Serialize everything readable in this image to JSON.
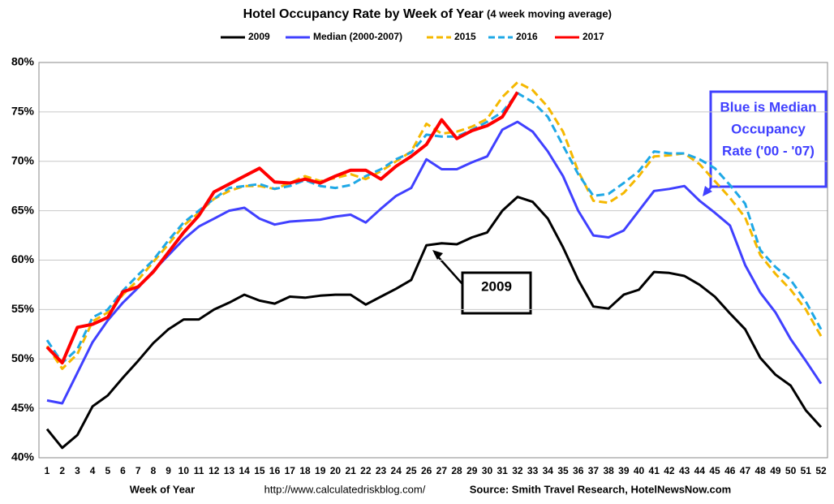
{
  "chart_data": {
    "type": "line",
    "title": "Hotel Occupancy Rate by  Week of Year",
    "subtitle": "(4 week moving average)",
    "x_label": "Week of Year",
    "url": "http://www.calculatedriskblog.com/",
    "source": "Source: Smith Travel Research, HotelNewsNow.com",
    "categories": [
      1,
      2,
      3,
      4,
      5,
      6,
      7,
      8,
      9,
      10,
      11,
      12,
      13,
      14,
      15,
      16,
      17,
      18,
      19,
      20,
      21,
      22,
      23,
      24,
      25,
      26,
      27,
      28,
      29,
      30,
      31,
      32,
      33,
      34,
      35,
      36,
      37,
      38,
      39,
      40,
      41,
      42,
      43,
      44,
      45,
      46,
      47,
      48,
      49,
      50,
      51,
      52
    ],
    "ylim": [
      40,
      80
    ],
    "yticks": [
      {
        "value": 40,
        "label": "40%"
      },
      {
        "value": 45,
        "label": "45%"
      },
      {
        "value": 50,
        "label": "50%"
      },
      {
        "value": 55,
        "label": "55%"
      },
      {
        "value": 60,
        "label": "60%"
      },
      {
        "value": 65,
        "label": "65%"
      },
      {
        "value": 70,
        "label": "70%"
      },
      {
        "value": 75,
        "label": "75%"
      },
      {
        "value": 80,
        "label": "80%"
      }
    ],
    "grid": true,
    "legend": "top",
    "series": [
      {
        "name": "2009",
        "color": "#000000",
        "style": "solid",
        "values": [
          42.9,
          41.0,
          42.3,
          45.2,
          46.3,
          48.1,
          49.8,
          51.6,
          53.0,
          54.0,
          54.0,
          55.0,
          55.7,
          56.5,
          55.9,
          55.6,
          56.3,
          56.2,
          56.4,
          56.5,
          56.5,
          55.5,
          56.3,
          57.1,
          58.0,
          61.5,
          61.7,
          61.6,
          62.3,
          62.8,
          65.0,
          66.4,
          65.9,
          64.2,
          61.3,
          58.0,
          55.3,
          55.1,
          56.5,
          57.0,
          58.8,
          58.7,
          58.4,
          57.5,
          56.3,
          54.6,
          53.0,
          50.1,
          48.4,
          47.3,
          44.8,
          43.1
        ]
      },
      {
        "name": "Median (2000-2007)",
        "color": "#4040ff",
        "style": "solid",
        "values": [
          45.8,
          45.5,
          48.6,
          51.7,
          53.9,
          55.7,
          57.2,
          58.9,
          60.5,
          62.1,
          63.4,
          64.2,
          65.0,
          65.3,
          64.2,
          63.6,
          63.9,
          64.0,
          64.1,
          64.4,
          64.6,
          63.8,
          65.2,
          66.5,
          67.3,
          70.2,
          69.2,
          69.2,
          69.9,
          70.5,
          73.2,
          74.0,
          73.0,
          71.0,
          68.5,
          65.0,
          62.5,
          62.3,
          63.0,
          65.0,
          67.0,
          67.2,
          67.5,
          66.0,
          64.8,
          63.5,
          59.5,
          56.7,
          54.7,
          52.0,
          49.8,
          47.5
        ]
      },
      {
        "name": "2015",
        "color": "#f5b800",
        "style": "dashed",
        "values": [
          51.3,
          49.0,
          50.5,
          53.8,
          54.7,
          56.5,
          58.0,
          59.8,
          61.6,
          63.5,
          64.8,
          66.2,
          67.0,
          67.5,
          67.5,
          67.2,
          67.8,
          68.5,
          68.0,
          68.3,
          68.7,
          68.2,
          69.0,
          70.0,
          71.0,
          73.8,
          72.8,
          73.0,
          73.5,
          74.3,
          76.5,
          78.0,
          77.2,
          75.5,
          73.0,
          69.0,
          66.0,
          65.8,
          66.8,
          68.5,
          70.5,
          70.6,
          70.8,
          69.7,
          68.0,
          66.3,
          64.3,
          60.5,
          58.6,
          57.0,
          55.0,
          52.3
        ]
      },
      {
        "name": "2016",
        "color": "#1fa8e6",
        "style": "dashed",
        "values": [
          51.9,
          49.6,
          51.0,
          54.2,
          55.0,
          56.9,
          58.5,
          60.0,
          62.0,
          63.8,
          65.0,
          66.2,
          67.3,
          67.5,
          67.7,
          67.2,
          67.5,
          68.1,
          67.5,
          67.3,
          67.6,
          68.5,
          69.2,
          70.2,
          70.9,
          72.7,
          72.5,
          72.5,
          73.2,
          74.0,
          75.0,
          76.9,
          76.0,
          74.5,
          71.6,
          68.7,
          66.5,
          66.7,
          67.8,
          69.0,
          71.0,
          70.8,
          70.8,
          70.2,
          69.3,
          67.6,
          65.7,
          61.0,
          59.3,
          58.0,
          55.8,
          53.0
        ]
      },
      {
        "name": "2017",
        "color": "#ff0000",
        "style": "solid",
        "values": [
          51.2,
          49.6,
          53.2,
          53.5,
          54.2,
          56.8,
          57.3,
          58.8,
          60.8,
          62.8,
          64.5,
          66.9,
          67.7,
          68.5,
          69.3,
          67.9,
          67.8,
          68.2,
          67.8,
          68.5,
          69.1,
          69.1,
          68.2,
          69.5,
          70.5,
          71.7,
          74.2,
          72.3,
          73.1,
          73.6,
          74.5,
          77.0,
          null,
          null,
          null,
          null,
          null,
          null,
          null,
          null,
          null,
          null,
          null,
          null,
          null,
          null,
          null,
          null,
          null,
          null,
          null,
          null
        ]
      }
    ],
    "annotations": [
      {
        "text": [
          "2009"
        ],
        "color": "#000000"
      },
      {
        "text": [
          "Blue is Median",
          "Occupancy",
          "Rate ('00 - '07)"
        ],
        "color": "#4040ff"
      }
    ]
  }
}
